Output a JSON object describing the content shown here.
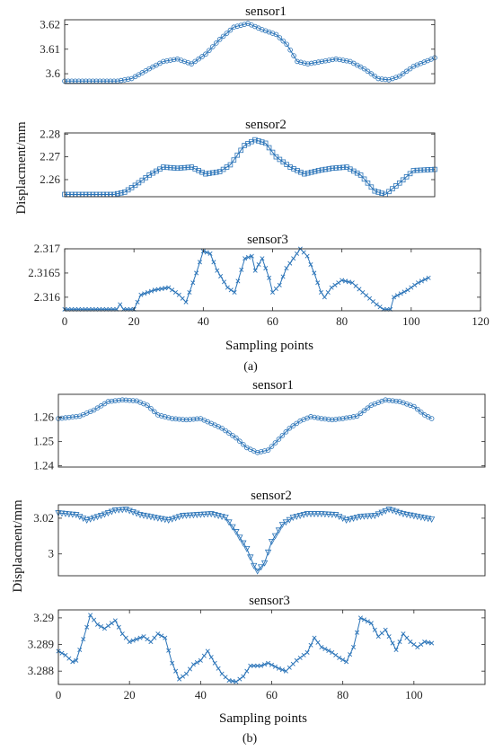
{
  "colors": {
    "series": "#2b74b8",
    "axis": "#262626",
    "text": "#111111"
  },
  "figure": {
    "panels": [
      {
        "label": "(a)",
        "ylabel": "Displacment/mm",
        "xlabel": "Sampling points"
      },
      {
        "label": "(b)",
        "ylabel": "Displacment/mm",
        "xlabel": "Sampling points"
      }
    ]
  },
  "chart_data": [
    {
      "type": "line",
      "panel": "a",
      "title": "sensor1",
      "marker": "circle",
      "xlim": [
        0,
        105
      ],
      "ylim": [
        3.596,
        3.622
      ],
      "xticks": [],
      "yticks": [
        3.6,
        3.61,
        3.62
      ],
      "ytick_labels": [
        "3.6",
        "3.61",
        "3.62"
      ],
      "x_range": [
        0,
        105
      ],
      "knots": [
        [
          0,
          3.597
        ],
        [
          15,
          3.597
        ],
        [
          19,
          3.598
        ],
        [
          24,
          3.602
        ],
        [
          28,
          3.605
        ],
        [
          32,
          3.606
        ],
        [
          36,
          3.604
        ],
        [
          40,
          3.608
        ],
        [
          44,
          3.614
        ],
        [
          48,
          3.619
        ],
        [
          52,
          3.6205
        ],
        [
          56,
          3.618
        ],
        [
          60,
          3.616
        ],
        [
          63,
          3.612
        ],
        [
          66,
          3.605
        ],
        [
          69,
          3.604
        ],
        [
          73,
          3.605
        ],
        [
          77,
          3.606
        ],
        [
          81,
          3.605
        ],
        [
          85,
          3.602
        ],
        [
          89,
          3.598
        ],
        [
          92,
          3.5975
        ],
        [
          95,
          3.599
        ],
        [
          99,
          3.603
        ],
        [
          105,
          3.6065
        ]
      ]
    },
    {
      "type": "line",
      "panel": "a",
      "title": "sensor2",
      "marker": "square",
      "xlim": [
        0,
        105
      ],
      "ylim": [
        2.2525,
        2.2805
      ],
      "xticks": [],
      "yticks": [
        2.26,
        2.27,
        2.28
      ],
      "ytick_labels": [
        "2.26",
        "2.27",
        "2.28"
      ],
      "x_range": [
        0,
        105
      ],
      "knots": [
        [
          0,
          2.2535
        ],
        [
          14,
          2.2535
        ],
        [
          17,
          2.2545
        ],
        [
          20,
          2.2575
        ],
        [
          24,
          2.262
        ],
        [
          28,
          2.2655
        ],
        [
          32,
          2.265
        ],
        [
          36,
          2.2655
        ],
        [
          40,
          2.2625
        ],
        [
          44,
          2.2635
        ],
        [
          47,
          2.2665
        ],
        [
          51,
          2.275
        ],
        [
          54,
          2.2775
        ],
        [
          57,
          2.276
        ],
        [
          60,
          2.27
        ],
        [
          64,
          2.2655
        ],
        [
          68,
          2.2625
        ],
        [
          72,
          2.264
        ],
        [
          76,
          2.265
        ],
        [
          80,
          2.2655
        ],
        [
          84,
          2.262
        ],
        [
          88,
          2.255
        ],
        [
          91,
          2.2535
        ],
        [
          95,
          2.2585
        ],
        [
          99,
          2.264
        ],
        [
          105,
          2.2645
        ]
      ]
    },
    {
      "type": "line",
      "panel": "a",
      "title": "sensor3",
      "marker": "x",
      "xlim": [
        0,
        120
      ],
      "ylim": [
        2.31572,
        2.317
      ],
      "xticks": [
        0,
        20,
        40,
        60,
        80,
        100,
        120
      ],
      "xtick_labels": [
        "0",
        "20",
        "40",
        "60",
        "80",
        "100",
        "120"
      ],
      "yticks": [
        2.316,
        2.3165,
        2.317
      ],
      "ytick_labels": [
        "2.316",
        "2.3165",
        "2.317"
      ],
      "x_range": [
        0,
        105
      ],
      "knots": [
        [
          0,
          2.31575
        ],
        [
          15,
          2.31575
        ],
        [
          16,
          2.31585
        ],
        [
          17,
          2.31575
        ],
        [
          20,
          2.31575
        ],
        [
          22,
          2.31605
        ],
        [
          26,
          2.31615
        ],
        [
          30,
          2.3162
        ],
        [
          33,
          2.31605
        ],
        [
          35,
          2.3159
        ],
        [
          38,
          2.3165
        ],
        [
          40,
          2.31695
        ],
        [
          42,
          2.3169
        ],
        [
          44,
          2.31655
        ],
        [
          47,
          2.3162
        ],
        [
          49,
          2.3161
        ],
        [
          52,
          2.3168
        ],
        [
          54,
          2.31685
        ],
        [
          55,
          2.31655
        ],
        [
          57,
          2.3168
        ],
        [
          59,
          2.3164
        ],
        [
          60,
          2.3161
        ],
        [
          62,
          2.31625
        ],
        [
          64,
          2.3166
        ],
        [
          66,
          2.3168
        ],
        [
          68,
          2.317
        ],
        [
          70,
          2.31685
        ],
        [
          72,
          2.3165
        ],
        [
          74,
          2.3161
        ],
        [
          75,
          2.316
        ],
        [
          77,
          2.3162
        ],
        [
          80,
          2.31635
        ],
        [
          83,
          2.3163
        ],
        [
          86,
          2.3161
        ],
        [
          90,
          2.31585
        ],
        [
          92,
          2.31575
        ],
        [
          94,
          2.31575
        ],
        [
          95,
          2.316
        ],
        [
          99,
          2.31615
        ],
        [
          102,
          2.3163
        ],
        [
          105,
          2.3164
        ]
      ]
    },
    {
      "type": "line",
      "panel": "b",
      "title": "sensor1",
      "marker": "circle",
      "xlim": [
        0,
        120
      ],
      "ylim": [
        1.2395,
        1.2695
      ],
      "xticks": [],
      "yticks": [
        1.24,
        1.25,
        1.26
      ],
      "ytick_labels": [
        "1.24",
        "1.25",
        "1.26"
      ],
      "x_range": [
        0,
        105
      ],
      "knots": [
        [
          0,
          1.2595
        ],
        [
          6,
          1.2605
        ],
        [
          10,
          1.263
        ],
        [
          14,
          1.2665
        ],
        [
          18,
          1.2672
        ],
        [
          22,
          1.2668
        ],
        [
          25,
          1.265
        ],
        [
          28,
          1.261
        ],
        [
          32,
          1.2595
        ],
        [
          36,
          1.259
        ],
        [
          40,
          1.2595
        ],
        [
          43,
          1.2575
        ],
        [
          46,
          1.2555
        ],
        [
          50,
          1.2515
        ],
        [
          53,
          1.2475
        ],
        [
          56,
          1.2455
        ],
        [
          59,
          1.2465
        ],
        [
          62,
          1.251
        ],
        [
          65,
          1.2555
        ],
        [
          68,
          1.2585
        ],
        [
          71,
          1.2603
        ],
        [
          74,
          1.2595
        ],
        [
          77,
          1.259
        ],
        [
          80,
          1.2595
        ],
        [
          84,
          1.2605
        ],
        [
          88,
          1.265
        ],
        [
          92,
          1.2672
        ],
        [
          96,
          1.2665
        ],
        [
          100,
          1.2645
        ],
        [
          103,
          1.261
        ],
        [
          105,
          1.2595
        ]
      ]
    },
    {
      "type": "line",
      "panel": "b",
      "title": "sensor2",
      "marker": "triangle-down",
      "xlim": [
        0,
        120
      ],
      "ylim": [
        2.9878,
        3.0275
      ],
      "xticks": [],
      "yticks": [
        3.0,
        3.02
      ],
      "ytick_labels": [
        "3",
        "3.02"
      ],
      "x_range": [
        0,
        105
      ],
      "knots": [
        [
          0,
          3.023
        ],
        [
          5,
          3.022
        ],
        [
          8,
          3.019
        ],
        [
          12,
          3.0215
        ],
        [
          16,
          3.0245
        ],
        [
          19,
          3.025
        ],
        [
          23,
          3.022
        ],
        [
          27,
          3.0205
        ],
        [
          31,
          3.019
        ],
        [
          35,
          3.0215
        ],
        [
          39,
          3.022
        ],
        [
          43,
          3.0225
        ],
        [
          47,
          3.0205
        ],
        [
          50,
          3.0125
        ],
        [
          53,
          3.003
        ],
        [
          55,
          2.9935
        ],
        [
          56,
          2.9905
        ],
        [
          58,
          2.995
        ],
        [
          60,
          3.007
        ],
        [
          63,
          3.0165
        ],
        [
          66,
          3.0205
        ],
        [
          70,
          3.0225
        ],
        [
          74,
          3.0225
        ],
        [
          78,
          3.022
        ],
        [
          81,
          3.019
        ],
        [
          85,
          3.021
        ],
        [
          89,
          3.0215
        ],
        [
          93,
          3.025
        ],
        [
          97,
          3.0225
        ],
        [
          101,
          3.021
        ],
        [
          105,
          3.0195
        ]
      ]
    },
    {
      "type": "line",
      "panel": "b",
      "title": "sensor3",
      "marker": "x",
      "xlim": [
        0,
        120
      ],
      "ylim": [
        3.2875,
        3.2903
      ],
      "xticks": [
        0,
        20,
        40,
        60,
        80,
        100
      ],
      "xtick_labels": [
        "0",
        "20",
        "40",
        "60",
        "80",
        "100"
      ],
      "yticks": [
        3.288,
        3.289,
        3.29
      ],
      "ytick_labels": [
        "3.288",
        "3.289",
        "3.29"
      ],
      "x_range": [
        0,
        105
      ],
      "knots": [
        [
          0,
          3.28875
        ],
        [
          2,
          3.2886
        ],
        [
          4,
          3.28835
        ],
        [
          5,
          3.2884
        ],
        [
          7,
          3.2892
        ],
        [
          9,
          3.2901
        ],
        [
          11,
          3.28975
        ],
        [
          13,
          3.2896
        ],
        [
          16,
          3.2899
        ],
        [
          18,
          3.2894
        ],
        [
          20,
          3.2891
        ],
        [
          22,
          3.2892
        ],
        [
          24,
          3.2893
        ],
        [
          26,
          3.2891
        ],
        [
          28,
          3.2894
        ],
        [
          30,
          3.28925
        ],
        [
          32,
          3.2883
        ],
        [
          34,
          3.2877
        ],
        [
          36,
          3.2879
        ],
        [
          38,
          3.28825
        ],
        [
          40,
          3.2884
        ],
        [
          42,
          3.28875
        ],
        [
          44,
          3.2883
        ],
        [
          46,
          3.2879
        ],
        [
          48,
          3.28765
        ],
        [
          50,
          3.2876
        ],
        [
          52,
          3.2878
        ],
        [
          54,
          3.2882
        ],
        [
          57,
          3.2882
        ],
        [
          59,
          3.2883
        ],
        [
          62,
          3.2881
        ],
        [
          64,
          3.288
        ],
        [
          67,
          3.2884
        ],
        [
          70,
          3.2887
        ],
        [
          72,
          3.28925
        ],
        [
          74,
          3.2889
        ],
        [
          77,
          3.2887
        ],
        [
          79,
          3.2885
        ],
        [
          81,
          3.28835
        ],
        [
          83,
          3.2889
        ],
        [
          85,
          3.29
        ],
        [
          88,
          3.2898
        ],
        [
          90,
          3.2893
        ],
        [
          92,
          3.28955
        ],
        [
          95,
          3.2888
        ],
        [
          97,
          3.2894
        ],
        [
          99,
          3.2891
        ],
        [
          101,
          3.2889
        ],
        [
          103,
          3.2891
        ],
        [
          105,
          3.28905
        ]
      ]
    }
  ]
}
